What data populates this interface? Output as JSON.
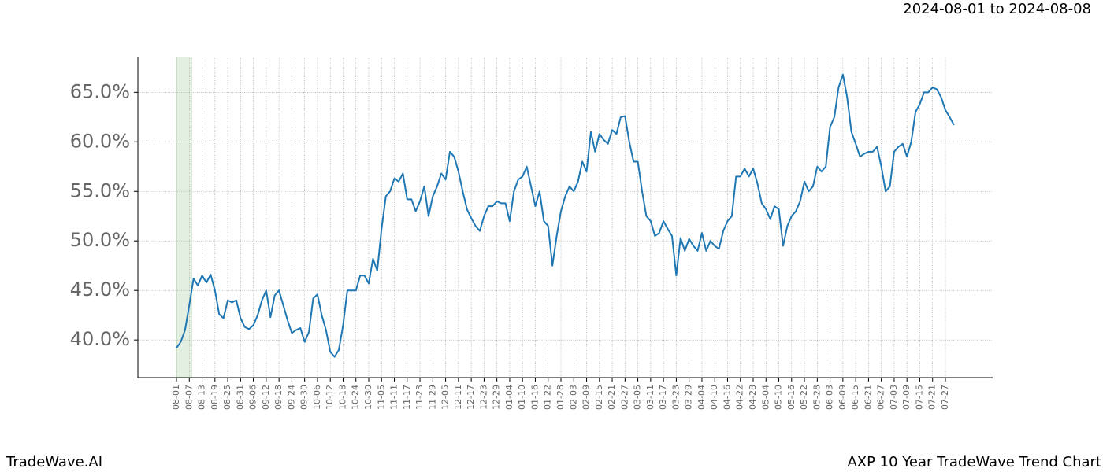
{
  "chart_data": {
    "type": "line",
    "title": "2024-08-01 to 2024-08-08",
    "brand": "TradeWave.AI",
    "subtitle": "AXP 10 Year TradeWave Trend Chart",
    "color": "#1f77b4",
    "grid": true,
    "ylim": [
      36.2,
      68.6
    ],
    "yticks": [
      {
        "value": 40,
        "label": "40.0%"
      },
      {
        "value": 45,
        "label": "45.0%"
      },
      {
        "value": 50,
        "label": "50.0%"
      },
      {
        "value": 55,
        "label": "55.0%"
      },
      {
        "value": 60,
        "label": "60.0%"
      },
      {
        "value": 65,
        "label": "65.0%"
      }
    ],
    "categories": [
      "08-01",
      null,
      null,
      "08-07",
      null,
      null,
      "08-13",
      null,
      null,
      "08-19",
      null,
      null,
      "08-25",
      null,
      null,
      "08-31",
      null,
      null,
      "09-06",
      null,
      null,
      "09-12",
      null,
      null,
      "09-18",
      null,
      null,
      "09-24",
      null,
      null,
      "09-30",
      null,
      null,
      "10-06",
      null,
      null,
      "10-12",
      null,
      null,
      "10-18",
      null,
      null,
      "10-24",
      null,
      null,
      "10-30",
      null,
      null,
      "11-05",
      null,
      null,
      "11-11",
      null,
      null,
      "11-17",
      null,
      null,
      "11-23",
      null,
      null,
      "11-29",
      null,
      null,
      "12-05",
      null,
      null,
      "12-11",
      null,
      null,
      "12-17",
      null,
      null,
      "12-23",
      null,
      null,
      "12-29",
      null,
      null,
      "01-04",
      null,
      null,
      "01-10",
      null,
      null,
      "01-16",
      null,
      null,
      "01-22",
      null,
      null,
      "01-28",
      null,
      null,
      "02-03",
      null,
      null,
      "02-09",
      null,
      null,
      "02-15",
      null,
      null,
      "02-21",
      null,
      null,
      "02-27",
      null,
      null,
      "03-05",
      null,
      null,
      "03-11",
      null,
      null,
      "03-17",
      null,
      null,
      "03-23",
      null,
      null,
      "03-29",
      null,
      null,
      "04-04",
      null,
      null,
      "04-10",
      null,
      null,
      "04-16",
      null,
      null,
      "04-22",
      null,
      null,
      "04-28",
      null,
      null,
      "05-04",
      null,
      null,
      "05-10",
      null,
      null,
      "05-16",
      null,
      null,
      "05-22",
      null,
      null,
      "05-28",
      null,
      null,
      "06-03",
      null,
      null,
      "06-09",
      null,
      null,
      "06-15",
      null,
      null,
      "06-21",
      null,
      null,
      "06-27",
      null,
      null,
      "07-03",
      null,
      null,
      "07-09",
      null,
      null,
      "07-15",
      null,
      null,
      "07-21",
      null,
      null,
      "07-27",
      null,
      null
    ],
    "values": [
      39.2,
      39.8,
      41.0,
      43.5,
      46.2,
      45.5,
      46.5,
      45.8,
      46.6,
      45.0,
      42.6,
      42.2,
      44.0,
      43.8,
      44.0,
      42.2,
      41.3,
      41.1,
      41.5,
      42.5,
      44.0,
      45.0,
      42.3,
      44.5,
      45.0,
      43.5,
      42.0,
      40.7,
      41.0,
      41.2,
      39.8,
      40.8,
      44.2,
      44.6,
      42.5,
      41.0,
      38.8,
      38.3,
      39.0,
      41.5,
      45.0,
      45.0,
      45.0,
      46.5,
      46.5,
      45.7,
      48.2,
      47.0,
      51.2,
      54.5,
      55.0,
      56.3,
      56.0,
      56.8,
      54.2,
      54.2,
      53.0,
      54.0,
      55.5,
      52.5,
      54.5,
      55.5,
      56.8,
      56.2,
      59.0,
      58.5,
      57.0,
      55.0,
      53.2,
      52.3,
      51.5,
      51.0,
      52.5,
      53.5,
      53.5,
      54.0,
      53.8,
      53.8,
      52.0,
      55.0,
      56.2,
      56.5,
      57.5,
      55.5,
      53.5,
      55.0,
      52.0,
      51.5,
      47.5,
      50.5,
      53.0,
      54.5,
      55.5,
      55.0,
      56.0,
      58.0,
      57.0,
      61.0,
      59.0,
      60.8,
      60.2,
      59.8,
      61.2,
      60.8,
      62.5,
      62.6,
      60.0,
      58.0,
      58.0,
      55.0,
      52.5,
      52.0,
      50.5,
      50.8,
      52.0,
      51.2,
      50.5,
      46.5,
      50.3,
      49.0,
      50.2,
      49.5,
      49.0,
      50.8,
      49.0,
      50.0,
      49.5,
      49.2,
      51.0,
      52.0,
      52.5,
      56.5,
      56.5,
      57.3,
      56.5,
      57.3,
      55.8,
      53.8,
      53.2,
      52.2,
      53.5,
      53.2,
      49.5,
      51.5,
      52.5,
      53.0,
      54.0,
      56.0,
      55.0,
      55.5,
      57.5,
      57.0,
      57.5,
      61.5,
      62.5,
      65.5,
      66.8,
      64.5,
      61.0,
      59.8,
      58.5,
      58.8,
      59.0,
      59.0,
      59.5,
      57.5,
      55.0,
      55.5,
      59.0,
      59.5,
      59.8,
      58.5,
      60.0,
      63.0,
      63.8,
      65.0,
      65.0,
      65.5,
      65.3,
      64.5,
      63.2,
      62.5,
      61.7
    ]
  }
}
